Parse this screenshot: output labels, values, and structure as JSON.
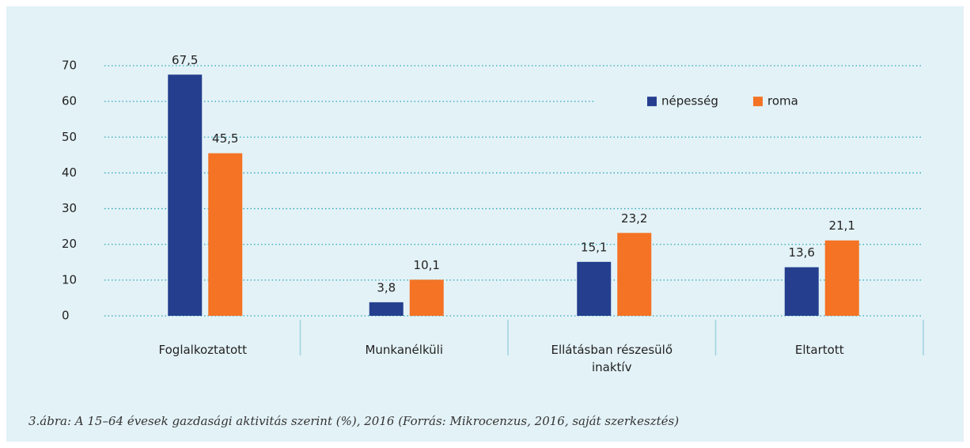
{
  "chart_data": {
    "type": "bar",
    "categories": [
      "Foglalkoztatott",
      "Munkanélküli",
      "Ellátásban részesülő inaktív",
      "Eltartott"
    ],
    "series": [
      {
        "name": "népesség",
        "color": "#253f8e",
        "values": [
          67.5,
          3.8,
          15.1,
          13.6
        ],
        "value_labels": [
          "67,5",
          "3,8",
          "15,1",
          "13,6"
        ]
      },
      {
        "name": "roma",
        "color": "#f47324",
        "values": [
          45.5,
          10.1,
          23.2,
          21.1
        ],
        "value_labels": [
          "45,5",
          "10,1",
          "23,2",
          "21,1"
        ]
      }
    ],
    "ylim": [
      0,
      70
    ],
    "yticks": [
      0,
      10,
      20,
      30,
      40,
      50,
      60,
      70
    ],
    "grid": true,
    "legend": "upper right",
    "caption": "3.ábra: A 15–64 évesek gazdasági aktivitás szerint (%), 2016 (Forrás: Mikrocenzus, 2016, saját szerkesztés)"
  }
}
